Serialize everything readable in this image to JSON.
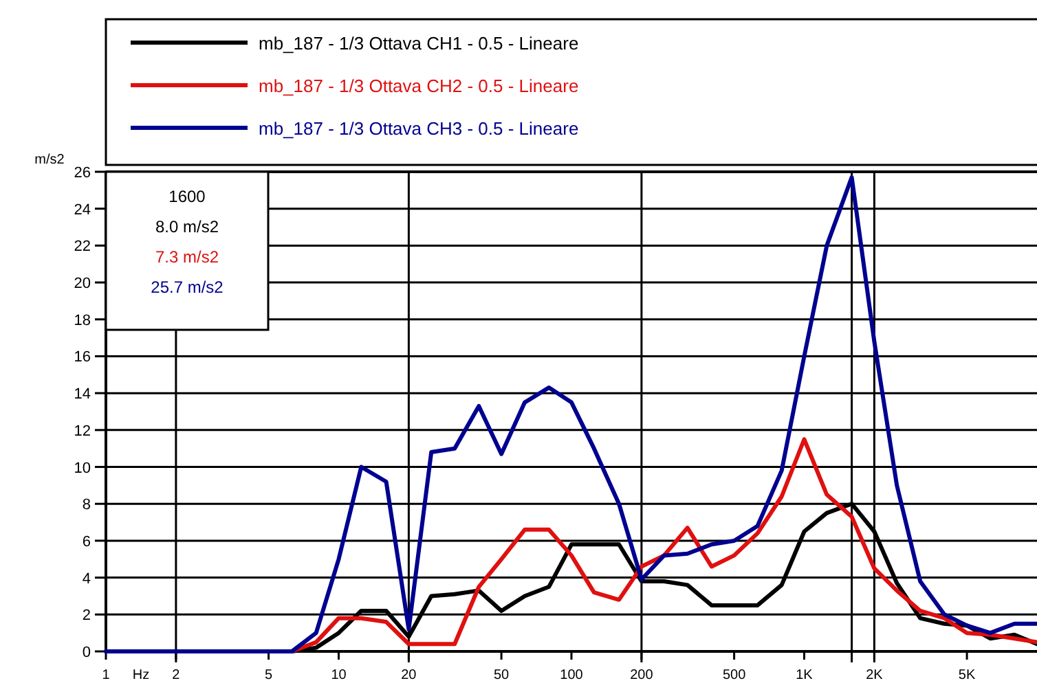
{
  "chart_data": {
    "type": "line",
    "xlabel": "Hz",
    "ylabel": "m/s2",
    "log": "x",
    "x": [
      1,
      1.25,
      1.6,
      2,
      2.5,
      3.15,
      4,
      5,
      6.3,
      8,
      10,
      12.5,
      16,
      20,
      25,
      31.5,
      40,
      50,
      63,
      80,
      100,
      125,
      160,
      200,
      250,
      315,
      400,
      500,
      630,
      800,
      1000,
      1250,
      1600,
      2000,
      2500,
      3150,
      4000,
      5000,
      6300,
      8000,
      10000
    ],
    "series": [
      {
        "name": "mb_187 - 1/3 Ottava CH1 - 0.5 - Lineare",
        "color": "#000000",
        "values": [
          null,
          null,
          null,
          null,
          null,
          null,
          null,
          null,
          0,
          0.2,
          1,
          2.2,
          2.2,
          0.8,
          3,
          3.1,
          3.3,
          2.2,
          3,
          3.5,
          5.8,
          5.8,
          5.8,
          3.8,
          3.8,
          3.6,
          2.5,
          2.5,
          2.5,
          3.6,
          6.5,
          7.5,
          8,
          6.5,
          3.7,
          1.8,
          1.5,
          1.4,
          0.7,
          0.9,
          0.4
        ]
      },
      {
        "name": "mb_187 - 1/3 Ottava CH2 - 0.5 - Lineare",
        "color": "#e01010",
        "values": [
          null,
          null,
          null,
          null,
          null,
          null,
          null,
          null,
          0,
          0.5,
          1.8,
          1.8,
          1.6,
          0.4,
          0.4,
          0.4,
          3.5,
          5,
          6.6,
          6.6,
          5.2,
          3.2,
          2.8,
          4.6,
          5.2,
          6.7,
          4.6,
          5.2,
          6.4,
          8.4,
          11.5,
          8.5,
          7.3,
          4.5,
          3.3,
          2.2,
          1.8,
          1,
          0.9,
          0.7,
          0.5
        ]
      },
      {
        "name": "mb_187 - 1/3 Ottava CH3 - 0.5 - Lineare",
        "color": "#000090",
        "values": [
          0,
          0,
          0,
          0,
          0,
          0,
          0,
          0,
          0,
          1,
          5,
          10,
          9.2,
          1.2,
          10.8,
          11,
          13.3,
          10.7,
          13.5,
          14.3,
          13.5,
          11,
          8,
          3.9,
          5.2,
          5.3,
          5.8,
          6,
          6.8,
          9.8,
          16,
          22,
          25.7,
          16.8,
          9,
          3.8,
          2,
          1.4,
          1,
          1.5,
          1.5
        ]
      }
    ],
    "xlim": [
      1,
      10000
    ],
    "ylim": [
      0,
      26
    ],
    "xticks": [
      {
        "value": 1,
        "label": "1"
      },
      2,
      5,
      10,
      20,
      50,
      100,
      200,
      500,
      {
        "value": 1000,
        "label": "1K"
      },
      {
        "value": 2000,
        "label": "2K"
      },
      {
        "value": 5000,
        "label": "5K"
      }
    ],
    "yticks": [
      0,
      2,
      4,
      6,
      8,
      10,
      12,
      14,
      16,
      18,
      20,
      22,
      24,
      26
    ],
    "grid": "y",
    "legend": "top",
    "ref_lines": [
      {
        "axis": "x",
        "value": 2
      },
      {
        "axis": "x",
        "value": 20
      },
      {
        "axis": "x",
        "value": 200
      },
      {
        "axis": "x",
        "value": 2000
      },
      {
        "axis": "x",
        "value": 1600
      }
    ],
    "annotations": [
      "1600",
      "8.0 m/s2",
      "7.3 m/s2",
      "25.7 m/s2"
    ]
  }
}
